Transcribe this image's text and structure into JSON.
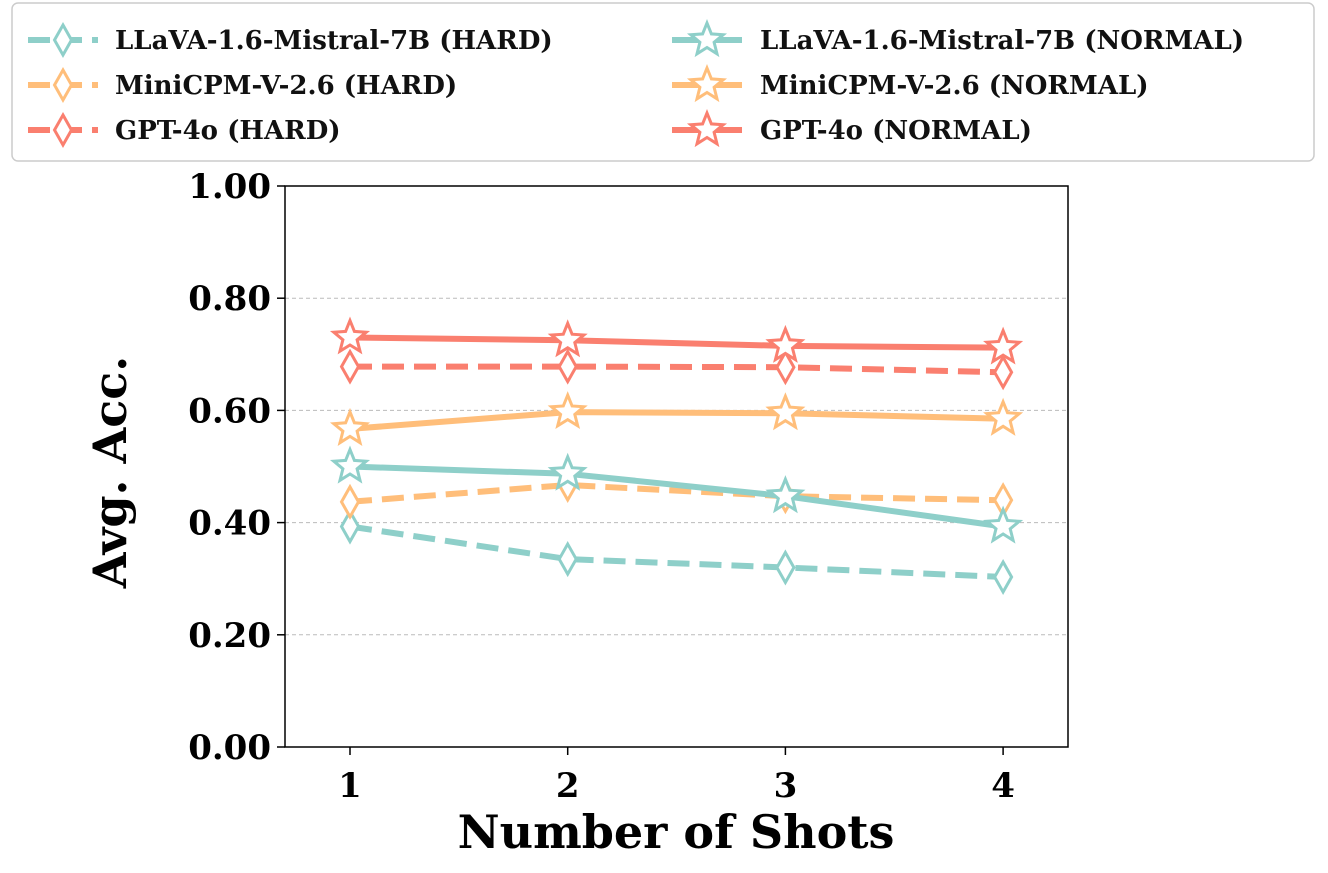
{
  "chart_data": {
    "type": "line",
    "title": "",
    "xlabel": "Number of Shots",
    "ylabel": "Avg. Acc.",
    "x": [
      1,
      2,
      3,
      4
    ],
    "x_tick_labels": [
      "1",
      "2",
      "3",
      "4"
    ],
    "ylim": [
      0.0,
      1.0
    ],
    "y_ticks": [
      0.0,
      0.2,
      0.4,
      0.6,
      0.8,
      1.0
    ],
    "y_tick_labels": [
      "0.00",
      "0.20",
      "0.40",
      "0.60",
      "0.80",
      "1.00"
    ],
    "grid": "horizontal dashed",
    "legend_position": "top, outside plot, two columns",
    "series": [
      {
        "name": "LLaVA-1.6-Mistral-7B (HARD)",
        "color": "#8ECFC9",
        "style": "dashed",
        "marker": "diamond",
        "values": [
          0.393,
          0.335,
          0.32,
          0.303
        ]
      },
      {
        "name": "MiniCPM-V-2.6 (HARD)",
        "color": "#FFBE7A",
        "style": "dashed",
        "marker": "diamond",
        "values": [
          0.437,
          0.467,
          0.447,
          0.44
        ]
      },
      {
        "name": "GPT-4o (HARD)",
        "color": "#FA7F6F",
        "style": "dashed",
        "marker": "diamond",
        "values": [
          0.678,
          0.678,
          0.677,
          0.668
        ]
      },
      {
        "name": "LLaVA-1.6-Mistral-7B (NORMAL)",
        "color": "#8ECFC9",
        "style": "solid",
        "marker": "star",
        "values": [
          0.5,
          0.487,
          0.447,
          0.393
        ]
      },
      {
        "name": "MiniCPM-V-2.6  (NORMAL)",
        "color": "#FFBE7A",
        "style": "solid",
        "marker": "star",
        "values": [
          0.567,
          0.597,
          0.595,
          0.585
        ]
      },
      {
        "name": "GPT-4o  (NORMAL)",
        "color": "#FA7F6F",
        "style": "solid",
        "marker": "star",
        "values": [
          0.73,
          0.725,
          0.715,
          0.712
        ]
      }
    ]
  }
}
